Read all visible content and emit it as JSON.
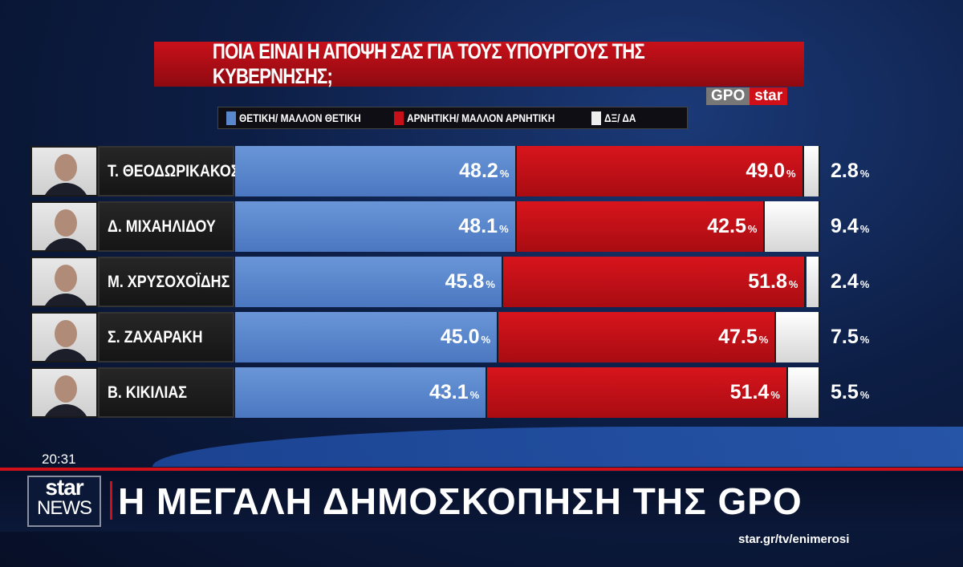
{
  "chart_data": {
    "type": "bar",
    "stacked": true,
    "orientation": "horizontal",
    "title": "ΠΟΙΑ ΕΙΝΑΙ Η ΑΠΟΨΗ ΣΑΣ ΓΙΑ ΤΟΥΣ ΥΠΟΥΡΓΟΥΣ ΤΗΣ ΚΥΒΕΡΝΗΣΗΣ;",
    "legend_placement": "top",
    "categories": [
      "Τ.  ΘΕΟΔΩΡΙΚΑΚΟΣ",
      "Δ. ΜΙΧΑΗΛΙΔΟΥ",
      "Μ. ΧΡΥΣΟΧΟΪΔΗΣ",
      "Σ. ΖΑΧΑΡΑΚΗ",
      "Β. ΚΙΚΙΛΙΑΣ"
    ],
    "series": [
      {
        "name": "ΘΕΤΙΚΗ/ ΜΑΛΛΟΝ ΘΕΤΙΚΗ",
        "color": "#5a86cc",
        "values": [
          48.2,
          48.1,
          45.8,
          45.0,
          43.1
        ],
        "labels": [
          "48.2",
          "48.1",
          "45.8",
          "45.0",
          "43.1"
        ]
      },
      {
        "name": "ΑΡΝΗΤΙΚΗ/ ΜΑΛΛΟΝ ΑΡΝΗΤΙΚΗ",
        "color": "#c81018",
        "values": [
          49.0,
          42.5,
          51.8,
          47.5,
          51.4
        ],
        "labels": [
          "49.0",
          "42.5",
          "51.8",
          "47.5",
          "51.4"
        ]
      },
      {
        "name": "ΔΞ/ ΔΑ",
        "color": "#eeeeee",
        "values": [
          2.8,
          9.4,
          2.4,
          7.5,
          5.5
        ],
        "labels": [
          "2.8",
          "9.4",
          "2.4",
          "7.5",
          "5.5"
        ]
      }
    ],
    "unit": "%",
    "xlim": [
      0,
      100
    ]
  },
  "source_logo": {
    "gpo": "GPO",
    "star": "star"
  },
  "broadcast": {
    "time": "20:31",
    "channel_logo_top": "star",
    "channel_logo_bottom": "NEWS",
    "headline": "Η ΜΕΓΑΛΗ ΔΗΜΟΣΚΟΠΗΣΗ ΤΗΣ GPO",
    "url": "star.gr/tv/enimerosi"
  }
}
